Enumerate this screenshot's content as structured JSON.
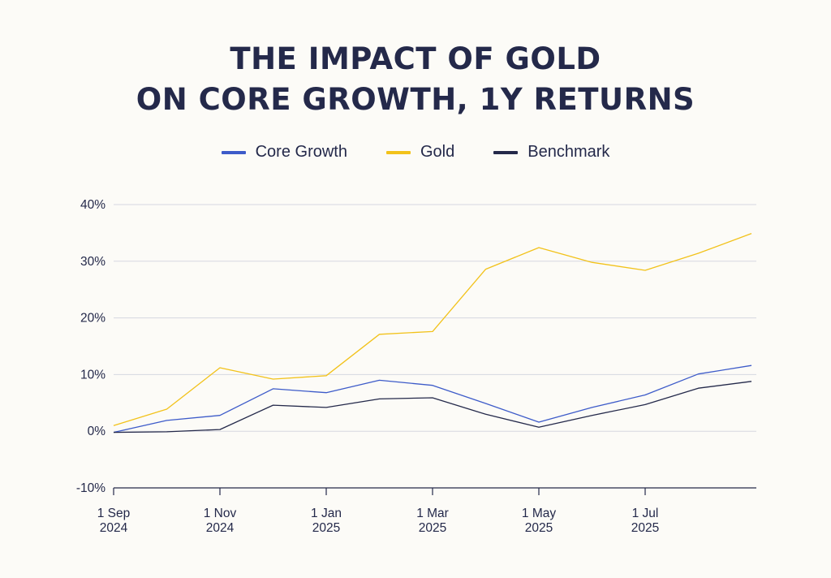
{
  "chart_data": {
    "type": "line",
    "title_lines": [
      "THE IMPACT OF GOLD",
      "ON CORE GROWTH, 1Y RETURNS"
    ],
    "xlabel": "",
    "ylabel": "",
    "ylim": [
      -10,
      40
    ],
    "y_ticks": [
      40,
      30,
      20,
      10,
      0,
      -10
    ],
    "y_tick_labels": [
      "40%",
      "30%",
      "20%",
      "10%",
      "0%",
      "-10%"
    ],
    "x_count": 13,
    "x_ticks": [
      {
        "index": 0,
        "line1": "1 Sep",
        "line2": "2024"
      },
      {
        "index": 2,
        "line1": "1 Nov",
        "line2": "2024"
      },
      {
        "index": 4,
        "line1": "1 Jan",
        "line2": "2025"
      },
      {
        "index": 6,
        "line1": "1 Mar",
        "line2": "2025"
      },
      {
        "index": 8,
        "line1": "1 May",
        "line2": "2025"
      },
      {
        "index": 10,
        "line1": "1 Jul",
        "line2": "2025"
      }
    ],
    "grid": true,
    "legend_position": "top-center",
    "series": [
      {
        "name": "Core Growth",
        "color": "#3d5bc9",
        "values": [
          -0.2,
          1.9,
          2.8,
          7.5,
          6.8,
          9.0,
          8.1,
          4.9,
          1.6,
          4.2,
          6.4,
          10.1,
          11.6
        ]
      },
      {
        "name": "Gold",
        "color": "#f2c21a",
        "values": [
          1.0,
          3.9,
          11.2,
          9.2,
          9.8,
          17.1,
          17.6,
          28.6,
          32.4,
          29.8,
          28.4,
          31.4,
          34.9
        ]
      },
      {
        "name": "Benchmark",
        "color": "#24294a",
        "values": [
          -0.2,
          -0.1,
          0.3,
          4.6,
          4.2,
          5.7,
          5.9,
          3.0,
          0.7,
          2.8,
          4.7,
          7.6,
          8.8
        ]
      }
    ]
  }
}
